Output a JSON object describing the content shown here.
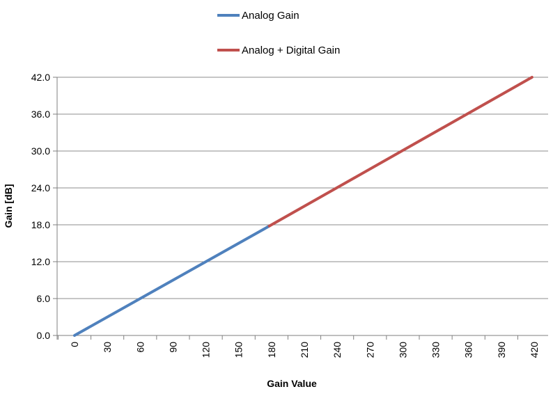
{
  "chart_data": {
    "type": "line",
    "title": "",
    "xlabel": "Gain Value",
    "ylabel": "Gain [dB]",
    "xlim": [
      0,
      420
    ],
    "ylim": [
      0,
      42
    ],
    "x_ticks": [
      "0",
      "30",
      "60",
      "90",
      "120",
      "150",
      "180",
      "210",
      "240",
      "270",
      "300",
      "330",
      "360",
      "390",
      "420"
    ],
    "y_ticks": [
      "0.0",
      "6.0",
      "12.0",
      "18.0",
      "24.0",
      "30.0",
      "36.0",
      "42.0"
    ],
    "grid": "horizontal",
    "legend_position": "top",
    "series": [
      {
        "name": "Analog Gain",
        "color": "#4f81bd",
        "x": [
          0,
          178
        ],
        "y": [
          0,
          17.8
        ]
      },
      {
        "name": "Analog + Digital Gain",
        "color": "#c0504d",
        "x": [
          178,
          418
        ],
        "y": [
          17.8,
          42
        ]
      }
    ]
  }
}
